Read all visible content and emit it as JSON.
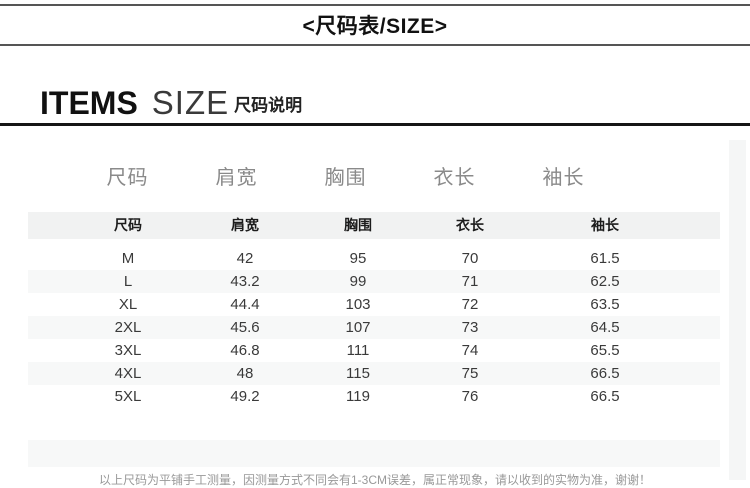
{
  "page_title": "<尺码表/SIZE>",
  "section_header": {
    "brand_en": "ITEMS",
    "brand_en2": "SIZE",
    "subtitle_cn": "尺码说明"
  },
  "size_table": {
    "display_headers": [
      "尺码",
      "肩宽",
      "胸围",
      "衣长",
      "袖长"
    ],
    "column_headers": [
      "尺码",
      "肩宽",
      "胸围",
      "衣长",
      "袖长"
    ],
    "rows": [
      [
        "M",
        "42",
        "95",
        "70",
        "61.5"
      ],
      [
        "L",
        "43.2",
        "99",
        "71",
        "62.5"
      ],
      [
        "XL",
        "44.4",
        "103",
        "72",
        "63.5"
      ],
      [
        "2XL",
        "45.6",
        "107",
        "73",
        "64.5"
      ],
      [
        "3XL",
        "46.8",
        "111",
        "74",
        "65.5"
      ],
      [
        "4XL",
        "48",
        "115",
        "75",
        "66.5"
      ],
      [
        "5XL",
        "49.2",
        "119",
        "76",
        "66.5"
      ]
    ]
  },
  "footnote_partial": "以上尺码为平铺手工测量，因测量方式不同会有1-3CM误差，属正常现象，请以收到的实物为准，谢谢！",
  "colors": {
    "divider_gray": "#555555",
    "divider_black": "#161616",
    "header_band_bg": "#f1f2f2",
    "alt_row_bg": "#f7f8f8",
    "display_header_text": "#8a8a8a",
    "body_text": "#3a3a3a",
    "footnote_text": "#999999"
  }
}
